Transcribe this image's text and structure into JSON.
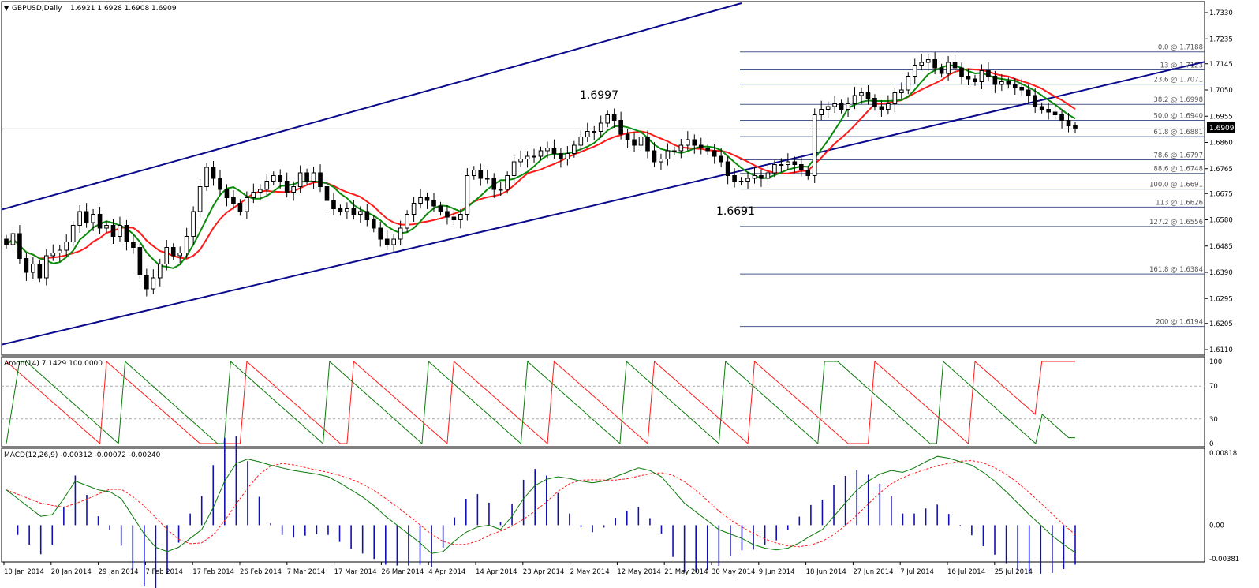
{
  "chart_data": [
    {
      "type": "candlestick",
      "title": "GBPUSD,Daily",
      "ohlc_header": "1.6921 1.6928 1.6908 1.6909",
      "current_price": "1.6909",
      "ylim": [
        1.611,
        1.733
      ],
      "y_ticks": [
        "1.7330",
        "1.7235",
        "1.7145",
        "1.7050",
        "1.6955",
        "1.6860",
        "1.6765",
        "1.6675",
        "1.6580",
        "1.6485",
        "1.6390",
        "1.6295",
        "1.6205",
        "1.6110"
      ],
      "annotations": [
        {
          "text": "1.6997",
          "x": "5 May 2014",
          "y": 1.6997
        },
        {
          "text": "1.6691",
          "x": "30 May 2014",
          "y": 1.6691
        }
      ],
      "fibonacci": [
        {
          "label": "0.0 @ 1.7188",
          "value": 1.7188
        },
        {
          "label": "13 @ 1.7123",
          "value": 1.7123
        },
        {
          "label": "23.6 @ 1.7071",
          "value": 1.7071
        },
        {
          "label": "38.2 @ 1.6998",
          "value": 1.6998
        },
        {
          "label": "50.0 @ 1.6940",
          "value": 1.694
        },
        {
          "label": "61.8 @ 1.6881",
          "value": 1.6881
        },
        {
          "label": "78.6 @ 1.6797",
          "value": 1.6797
        },
        {
          "label": "88.6 @ 1.6748",
          "value": 1.6748
        },
        {
          "label": "100.0 @ 1.6691",
          "value": 1.6691
        },
        {
          "label": "113 @ 1.6626",
          "value": 1.6626
        },
        {
          "label": "127.2 @ 1.6556",
          "value": 1.6556
        },
        {
          "label": "161.8 @ 1.6384",
          "value": 1.6384
        },
        {
          "label": "200 @ 1.6194",
          "value": 1.6194
        }
      ],
      "colors": {
        "green_ma": "#0a8a0a",
        "red_ma": "#ff1a1a",
        "ma_highlight": "#ffee00",
        "channel": "#0a0a8c",
        "fib": "#4a5a8a",
        "bull": "#ffffff",
        "bear": "#000000"
      }
    },
    {
      "type": "line",
      "title": "Aroon(14) 7.1429 100.0000",
      "ylim": [
        0,
        100
      ],
      "y_ticks": [
        "100",
        "70",
        "30",
        "0"
      ],
      "levels": [
        70,
        30
      ],
      "colors": {
        "aroon_up": "#0a7a0a",
        "aroon_down": "#ff1a1a"
      }
    },
    {
      "type": "line",
      "title": "MACD(12,26,9) -0.00312 -0.00072 -0.00240",
      "ylim": [
        -0.00381,
        0.00818
      ],
      "y_ticks": [
        "0.00818",
        "0.00",
        "-0.00381"
      ],
      "colors": {
        "macd": "#0a7a0a",
        "signal": "#ff1a1a",
        "histogram": "#1010b0"
      }
    }
  ],
  "x_axis": {
    "labels": [
      "10 Jan 2014",
      "20 Jan 2014",
      "29 Jan 2014",
      "7 Feb 2014",
      "17 Feb 2014",
      "26 Feb 2014",
      "7 Mar 2014",
      "17 Mar 2014",
      "26 Mar 2014",
      "4 Apr 2014",
      "14 Apr 2014",
      "23 Apr 2014",
      "2 May 2014",
      "12 May 2014",
      "21 May 2014",
      "30 May 2014",
      "9 Jun 2014",
      "18 Jun 2014",
      "27 Jun 2014",
      "7 Jul 2014",
      "16 Jul 2014",
      "25 Jul 2014"
    ]
  },
  "price_path": [
    1.649,
    1.653,
    1.644,
    1.639,
    1.642,
    1.637,
    1.645,
    1.646,
    1.647,
    1.65,
    1.656,
    1.661,
    1.657,
    1.66,
    1.655,
    1.656,
    1.652,
    1.656,
    1.65,
    1.648,
    1.638,
    1.633,
    1.637,
    1.642,
    1.648,
    1.645,
    1.646,
    1.652,
    1.661,
    1.67,
    1.677,
    1.673,
    1.669,
    1.666,
    1.664,
    1.661,
    1.666,
    1.668,
    1.669,
    1.672,
    1.674,
    1.672,
    1.668,
    1.67,
    1.675,
    1.672,
    1.675,
    1.67,
    1.665,
    1.662,
    1.661,
    1.662,
    1.66,
    1.661,
    1.658,
    1.655,
    1.651,
    1.649,
    1.651,
    1.655,
    1.66,
    1.664,
    1.666,
    1.665,
    1.663,
    1.661,
    1.659,
    1.658,
    1.66,
    1.674,
    1.676,
    1.673,
    1.673,
    1.669,
    1.669,
    1.674,
    1.679,
    1.68,
    1.681,
    1.681,
    1.683,
    1.684,
    1.682,
    1.68,
    1.682,
    1.685,
    1.688,
    1.69,
    1.69,
    1.693,
    1.696,
    1.694,
    1.689,
    1.687,
    1.685,
    1.688,
    1.683,
    1.679,
    1.68,
    1.683,
    1.683,
    1.685,
    1.687,
    1.685,
    1.684,
    1.683,
    1.681,
    1.679,
    1.674,
    1.672,
    1.672,
    1.673,
    1.674,
    1.673,
    1.675,
    1.678,
    1.678,
    1.679,
    1.678,
    1.676,
    1.674,
    1.696,
    1.698,
    1.699,
    1.7,
    1.698,
    1.7,
    1.703,
    1.704,
    1.702,
    1.699,
    1.698,
    1.7,
    1.704,
    1.705,
    1.71,
    1.714,
    1.715,
    1.716,
    1.713,
    1.711,
    1.715,
    1.713,
    1.71,
    1.709,
    1.708,
    1.712,
    1.71,
    1.707,
    1.708,
    1.707,
    1.706,
    1.705,
    1.703,
    1.699,
    1.698,
    1.697,
    1.696,
    1.694,
    1.692,
    1.6909
  ],
  "aroon_up_path": [
    0,
    50,
    100,
    100,
    92.9,
    85.7,
    78.6,
    71.4,
    64.3,
    57.1,
    50,
    42.9,
    35.7,
    28.6,
    21.4,
    14.3,
    7.1,
    0,
    100,
    92.9,
    85.7,
    78.6,
    71.4,
    64.3,
    57.1,
    50,
    42.9,
    35.7,
    28.6,
    21.4,
    14.3,
    7.1,
    0,
    0,
    100,
    92.9,
    85.7,
    78.6,
    71.4,
    64.3,
    57.1,
    50,
    42.9,
    35.7,
    28.6,
    21.4,
    14.3,
    7.1,
    0,
    100,
    92.9,
    85.7,
    78.6,
    71.4,
    64.3,
    57.1,
    50,
    42.9,
    35.7,
    28.6,
    21.4,
    14.3,
    7.1,
    0,
    100,
    92.9,
    85.7,
    78.6,
    71.4,
    64.3,
    57.1,
    50,
    42.9,
    35.7,
    28.6,
    21.4,
    14.3,
    7.1,
    0,
    100,
    92.9,
    85.7,
    78.6,
    71.4,
    64.3,
    57.1,
    50,
    42.9,
    35.7,
    28.6,
    21.4,
    14.3,
    7.1,
    0,
    100,
    92.9,
    85.7,
    78.6,
    71.4,
    64.3,
    57.1,
    50,
    42.9,
    35.7,
    28.6,
    21.4,
    14.3,
    7.1,
    0,
    100,
    92.9,
    85.7,
    78.6,
    71.4,
    64.3,
    57.1,
    50,
    42.9,
    35.7,
    28.6,
    21.4,
    14.3,
    7.1,
    0,
    100,
    100,
    100,
    92.9,
    85.7,
    78.6,
    71.4,
    64.3,
    57.1,
    50,
    42.9,
    35.7,
    28.6,
    21.4,
    14.3,
    7.1,
    0,
    0,
    100,
    92.9,
    85.7,
    78.6,
    71.4,
    64.3,
    57.1,
    50,
    42.9,
    35.7,
    28.6,
    21.4,
    14.3,
    7.1,
    0,
    35.7,
    28.6,
    21.4,
    14.3,
    7.1,
    7.1
  ],
  "aroon_down_path": [
    100,
    92.9,
    85.7,
    78.6,
    71.4,
    64.3,
    57.1,
    50,
    42.9,
    35.7,
    28.6,
    21.4,
    14.3,
    7.1,
    0,
    100,
    92.9,
    85.7,
    78.6,
    71.4,
    64.3,
    57.1,
    50,
    42.9,
    35.7,
    28.6,
    21.4,
    14.3,
    7.1,
    0,
    0,
    0,
    0,
    0,
    0,
    0,
    100,
    92.9,
    85.7,
    78.6,
    71.4,
    64.3,
    57.1,
    50,
    42.9,
    35.7,
    28.6,
    21.4,
    14.3,
    7.1,
    0,
    0,
    100,
    92.9,
    85.7,
    78.6,
    71.4,
    64.3,
    57.1,
    50,
    42.9,
    35.7,
    28.6,
    21.4,
    14.3,
    7.1,
    0,
    100,
    92.9,
    85.7,
    78.6,
    71.4,
    64.3,
    57.1,
    50,
    42.9,
    35.7,
    28.6,
    21.4,
    14.3,
    7.1,
    0,
    100,
    92.9,
    85.7,
    78.6,
    71.4,
    64.3,
    57.1,
    50,
    42.9,
    35.7,
    28.6,
    21.4,
    14.3,
    7.1,
    0,
    100,
    92.9,
    85.7,
    78.6,
    71.4,
    64.3,
    57.1,
    50,
    42.9,
    35.7,
    28.6,
    21.4,
    14.3,
    7.1,
    0,
    100,
    92.9,
    85.7,
    78.6,
    71.4,
    64.3,
    57.1,
    50,
    42.9,
    35.7,
    28.6,
    21.4,
    14.3,
    7.1,
    0,
    0,
    0,
    0,
    100,
    92.9,
    85.7,
    78.6,
    71.4,
    64.3,
    57.1,
    50,
    42.9,
    35.7,
    28.6,
    21.4,
    14.3,
    7.1,
    0,
    100,
    92.9,
    85.7,
    78.6,
    71.4,
    64.3,
    57.1,
    50,
    42.9,
    35.7,
    100,
    100,
    100,
    100,
    100,
    100
  ],
  "macd_path": [
    0.004,
    0.003,
    0.002,
    0.001,
    0.0012,
    0.003,
    0.005,
    0.0045,
    0.004,
    0.0038,
    0.003,
    0.001,
    -0.001,
    -0.0025,
    -0.003,
    -0.0025,
    -0.0015,
    -0.0005,
    0.002,
    0.005,
    0.007,
    0.0075,
    0.0072,
    0.0068,
    0.0065,
    0.0062,
    0.006,
    0.0058,
    0.0055,
    0.0048,
    0.004,
    0.0032,
    0.0022,
    0.001,
    0.0,
    -0.001,
    -0.002,
    -0.0032,
    -0.003,
    -0.0018,
    -0.0008,
    -0.0002,
    0.0,
    -0.0005,
    0.001,
    0.003,
    0.0045,
    0.0052,
    0.0055,
    0.0053,
    0.005,
    0.0048,
    0.005,
    0.0055,
    0.006,
    0.0065,
    0.0062,
    0.0055,
    0.004,
    0.0025,
    0.0015,
    0.0005,
    -0.0005,
    -0.001,
    -0.0015,
    -0.0022,
    -0.0026,
    -0.0028,
    -0.0026,
    -0.002,
    -0.0012,
    -0.0005,
    0.001,
    0.0025,
    0.004,
    0.005,
    0.0058,
    0.0062,
    0.006,
    0.0065,
    0.0072,
    0.0078,
    0.0076,
    0.0072,
    0.0068,
    0.006,
    0.005,
    0.0038,
    0.0025,
    0.0012,
    0.0,
    -0.0012,
    -0.0022,
    -0.0031
  ]
}
